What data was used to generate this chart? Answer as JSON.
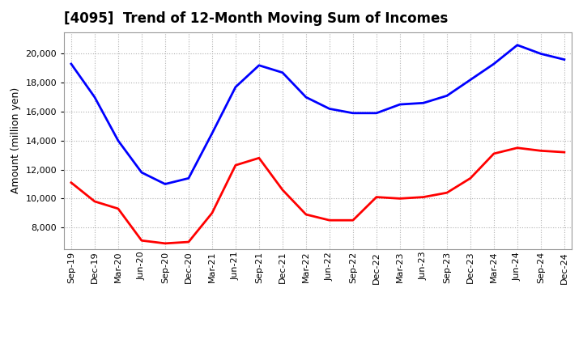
{
  "title": "[4095]  Trend of 12-Month Moving Sum of Incomes",
  "ylabel": "Amount (million yen)",
  "x_labels": [
    "Sep-19",
    "Dec-19",
    "Mar-20",
    "Jun-20",
    "Sep-20",
    "Dec-20",
    "Mar-21",
    "Jun-21",
    "Sep-21",
    "Dec-21",
    "Mar-22",
    "Jun-22",
    "Sep-22",
    "Dec-22",
    "Mar-23",
    "Jun-23",
    "Sep-23",
    "Dec-23",
    "Mar-24",
    "Jun-24",
    "Sep-24",
    "Dec-24"
  ],
  "ordinary_income": [
    19300,
    17000,
    14000,
    11800,
    11000,
    11400,
    14500,
    17700,
    19200,
    18700,
    17000,
    16200,
    15900,
    15900,
    16500,
    16600,
    17100,
    18200,
    19300,
    20600,
    20000,
    19600
  ],
  "net_income": [
    11100,
    9800,
    9300,
    7100,
    6900,
    7000,
    9000,
    12300,
    12800,
    10600,
    8900,
    8500,
    8500,
    10100,
    10000,
    10100,
    10400,
    11400,
    13100,
    13500,
    13300,
    13200
  ],
  "ordinary_color": "#0000ff",
  "net_color": "#ff0000",
  "ylim_min": 6500,
  "ylim_max": 21500,
  "yticks": [
    8000,
    10000,
    12000,
    14000,
    16000,
    18000,
    20000
  ],
  "background_color": "#ffffff",
  "grid_color": "#b0b0b0",
  "title_fontsize": 12,
  "ylabel_fontsize": 9,
  "tick_fontsize": 8
}
